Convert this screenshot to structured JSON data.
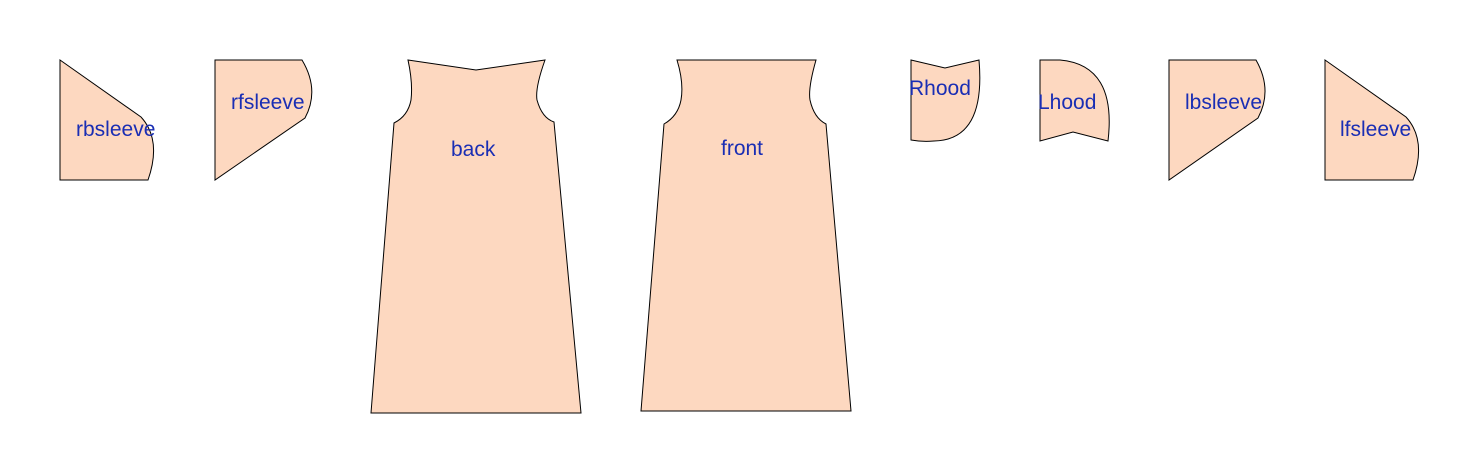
{
  "colors": {
    "fill": "#fdd8c0",
    "stroke": "#000000",
    "label": "#1a2eb4",
    "background": "#ffffff"
  },
  "pieces": [
    {
      "id": "rbsleeve",
      "label": "rbsleeve"
    },
    {
      "id": "rfsleeve",
      "label": "rfsleeve"
    },
    {
      "id": "back",
      "label": "back"
    },
    {
      "id": "front",
      "label": "front"
    },
    {
      "id": "rhood",
      "label": "Rhood"
    },
    {
      "id": "lhood",
      "label": "Lhood"
    },
    {
      "id": "lbsleeve",
      "label": "lbsleeve"
    },
    {
      "id": "lfsleeve",
      "label": "lfsleeve"
    }
  ]
}
